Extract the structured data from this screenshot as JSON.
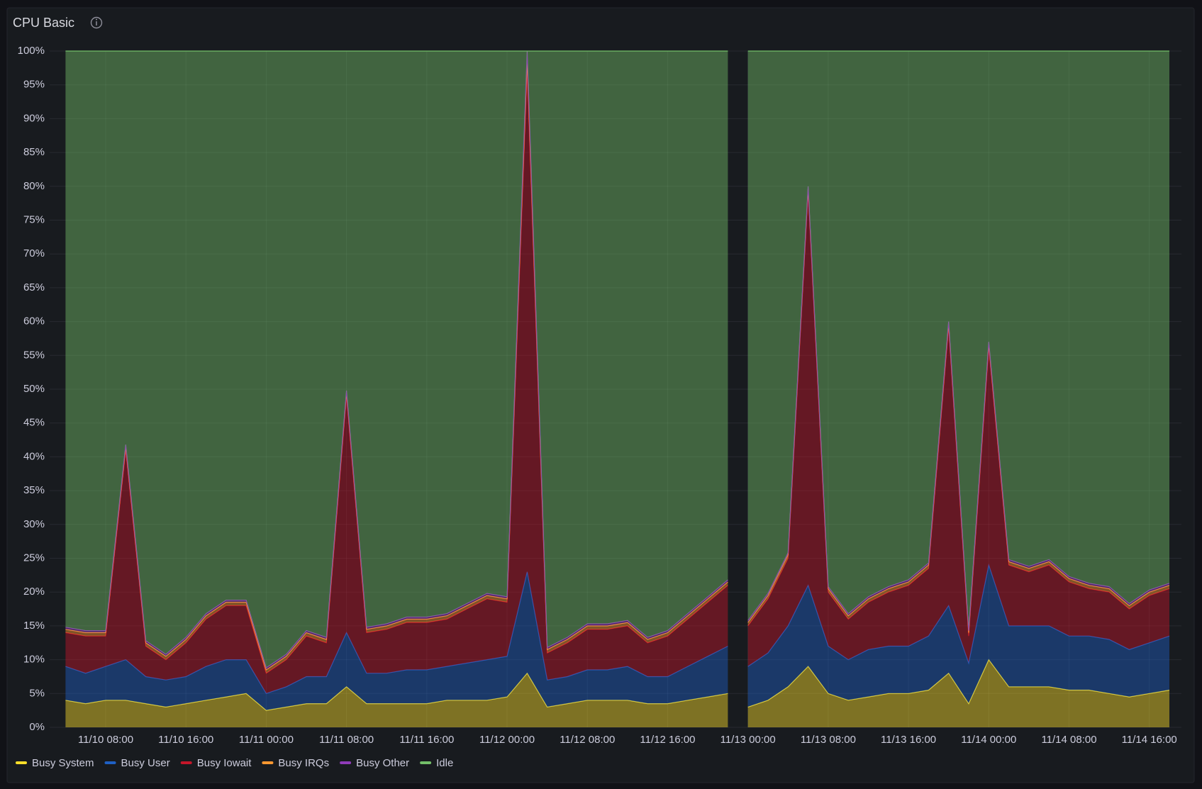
{
  "chart_data": {
    "type": "stacked-area",
    "title": "CPU Basic",
    "x": [
      "11/10 04:00",
      "11/10 06:00",
      "11/10 08:00",
      "11/10 10:00",
      "11/10 12:00",
      "11/10 14:00",
      "11/10 16:00",
      "11/10 18:00",
      "11/10 20:00",
      "11/10 22:00",
      "11/11 00:00",
      "11/11 02:00",
      "11/11 04:00",
      "11/11 06:00",
      "11/11 08:00",
      "11/11 10:00",
      "11/11 12:00",
      "11/11 14:00",
      "11/11 16:00",
      "11/11 18:00",
      "11/11 20:00",
      "11/11 22:00",
      "11/12 00:00",
      "11/12 02:00",
      "11/12 04:00",
      "11/12 06:00",
      "11/12 08:00",
      "11/12 10:00",
      "11/12 12:00",
      "11/12 14:00",
      "11/12 16:00",
      "11/12 18:00",
      "11/12 20:00",
      "11/12 22:00",
      "11/12 23:30",
      "11/13 00:00",
      "11/13 02:00",
      "11/13 04:00",
      "11/13 06:00",
      "11/13 08:00",
      "11/13 10:00",
      "11/13 12:00",
      "11/13 14:00",
      "11/13 16:00",
      "11/13 18:00",
      "11/13 20:00",
      "11/13 22:00",
      "11/14 00:00",
      "11/14 02:00",
      "11/14 04:00",
      "11/14 06:00",
      "11/14 08:00",
      "11/14 10:00",
      "11/14 12:00",
      "11/14 14:00",
      "11/14 16:00",
      "11/14 18:00"
    ],
    "series": [
      {
        "name": "Busy System",
        "color": "#fade2a",
        "values": [
          4,
          3.5,
          4,
          4,
          3.5,
          3,
          3.5,
          4,
          4.5,
          5,
          2.5,
          3,
          3.5,
          3.5,
          6,
          3.5,
          3.5,
          3.5,
          3.5,
          4,
          4,
          4,
          4.5,
          8,
          3,
          3.5,
          4,
          4,
          4,
          3.5,
          3.5,
          4,
          4.5,
          5,
          null,
          3,
          4,
          6,
          9,
          5,
          4,
          4.5,
          5,
          5,
          5.5,
          8,
          3.5,
          10,
          6,
          6,
          6,
          5.5,
          5.5,
          5,
          4.5,
          5,
          5.5
        ]
      },
      {
        "name": "Busy User",
        "color": "#1f60c4",
        "values": [
          5,
          4.5,
          5,
          6,
          4,
          4,
          4,
          5,
          5.5,
          5,
          2.5,
          3,
          4,
          4,
          8,
          4.5,
          4.5,
          5,
          5,
          5,
          5.5,
          6,
          6,
          15,
          4,
          4,
          4.5,
          4.5,
          5,
          4,
          4,
          5,
          6,
          7,
          null,
          6,
          7,
          9,
          12,
          7,
          6,
          7,
          7,
          7,
          8,
          10,
          6,
          14,
          9,
          9,
          9,
          8,
          8,
          8,
          7,
          7.5,
          8
        ]
      },
      {
        "name": "Busy Iowait",
        "color": "#c4162a",
        "values": [
          5,
          5.5,
          4.5,
          31,
          4.5,
          3,
          5,
          7,
          8,
          8,
          3,
          4,
          6,
          5,
          35,
          6,
          6.5,
          7,
          7,
          7,
          8,
          9,
          8,
          74.2,
          4,
          5,
          6,
          6,
          6,
          5,
          6,
          7,
          8,
          9,
          null,
          6,
          8,
          10,
          58.2,
          8,
          6,
          7,
          8,
          9,
          10,
          41.2,
          4,
          32.2,
          9,
          8,
          9,
          8,
          7,
          7,
          6,
          7,
          7
        ]
      },
      {
        "name": "Busy IRQs",
        "color": "#ff9830",
        "values": [
          0.5,
          0.5,
          0.5,
          0.5,
          0.5,
          0.5,
          0.5,
          0.5,
          0.5,
          0.5,
          0.5,
          0.5,
          0.5,
          0.5,
          0.5,
          0.5,
          0.5,
          0.5,
          0.5,
          0.5,
          0.5,
          0.5,
          0.5,
          1.5,
          0.5,
          0.5,
          0.5,
          0.5,
          0.5,
          0.5,
          0.5,
          0.5,
          0.5,
          0.5,
          null,
          0.5,
          0.5,
          0.5,
          0.5,
          0.5,
          0.5,
          0.5,
          0.5,
          0.5,
          0.5,
          0.5,
          0.5,
          0.5,
          0.5,
          0.5,
          0.5,
          0.5,
          0.5,
          0.5,
          0.5,
          0.5,
          0.5
        ]
      },
      {
        "name": "Busy Other",
        "color": "#8f3bb8",
        "values": [
          0.3,
          0.3,
          0.3,
          0.3,
          0.3,
          0.3,
          0.3,
          0.3,
          0.3,
          0.3,
          0.3,
          0.3,
          0.3,
          0.3,
          0.3,
          0.3,
          0.3,
          0.3,
          0.3,
          0.3,
          0.3,
          0.3,
          0.3,
          1.3,
          0.3,
          0.3,
          0.3,
          0.3,
          0.3,
          0.3,
          0.3,
          0.3,
          0.3,
          0.3,
          null,
          0.3,
          0.3,
          0.3,
          0.3,
          0.3,
          0.3,
          0.3,
          0.3,
          0.3,
          0.3,
          0.3,
          0.3,
          0.3,
          0.3,
          0.3,
          0.3,
          0.3,
          0.3,
          0.3,
          0.3,
          0.3,
          0.3
        ]
      },
      {
        "name": "Idle",
        "color": "#73bf69",
        "values": [
          85.2,
          85.7,
          85.7,
          58.2,
          87.2,
          89.2,
          86.7,
          83.2,
          81.2,
          81.2,
          91.2,
          89.2,
          85.7,
          86.7,
          50.2,
          85.2,
          84.7,
          83.7,
          83.7,
          83.2,
          81.7,
          80.2,
          80.7,
          0,
          88.2,
          86.7,
          84.7,
          84.7,
          84.2,
          86.7,
          85.7,
          83.2,
          80.7,
          78.2,
          null,
          84.2,
          80.2,
          74.2,
          20,
          79.2,
          83.2,
          80.7,
          79.2,
          78.2,
          75.7,
          40,
          85.7,
          43,
          75.2,
          76.2,
          75.2,
          77.7,
          78.7,
          79.2,
          81.7,
          79.7,
          78.7
        ]
      }
    ],
    "xlim": [
      "11/10 02:25",
      "11/14 19:12"
    ],
    "xticks": [
      "11/10 08:00",
      "11/10 16:00",
      "11/11 00:00",
      "11/11 08:00",
      "11/11 16:00",
      "11/12 00:00",
      "11/12 08:00",
      "11/12 16:00",
      "11/13 00:00",
      "11/13 08:00",
      "11/13 16:00",
      "11/14 00:00",
      "11/14 08:00",
      "11/14 16:00"
    ],
    "ylim": [
      0,
      100
    ],
    "yticks": [
      {
        "value": 0,
        "label": "0%"
      },
      {
        "value": 5,
        "label": "5%"
      },
      {
        "value": 10,
        "label": "10%"
      },
      {
        "value": 15,
        "label": "15%"
      },
      {
        "value": 20,
        "label": "20%"
      },
      {
        "value": 25,
        "label": "25%"
      },
      {
        "value": 30,
        "label": "30%"
      },
      {
        "value": 35,
        "label": "35%"
      },
      {
        "value": 40,
        "label": "40%"
      },
      {
        "value": 45,
        "label": "45%"
      },
      {
        "value": 50,
        "label": "50%"
      },
      {
        "value": 55,
        "label": "55%"
      },
      {
        "value": 60,
        "label": "60%"
      },
      {
        "value": 65,
        "label": "65%"
      },
      {
        "value": 70,
        "label": "70%"
      },
      {
        "value": 75,
        "label": "75%"
      },
      {
        "value": 80,
        "label": "80%"
      },
      {
        "value": 85,
        "label": "85%"
      },
      {
        "value": 90,
        "label": "90%"
      },
      {
        "value": 95,
        "label": "95%"
      },
      {
        "value": 100,
        "label": "100%"
      }
    ],
    "grid": true,
    "legend": "bottom-left"
  }
}
